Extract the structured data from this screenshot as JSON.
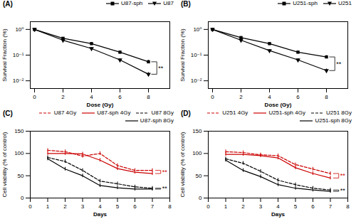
{
  "chart_data": [
    {
      "type": "line",
      "title": "(A)",
      "xlabel": "Dose (Gy)",
      "ylabel": "Survival Fraction (%)",
      "x": [
        0,
        2,
        4,
        6,
        8
      ],
      "series": [
        {
          "name": "U87-sph",
          "color": "#000000",
          "marker": "square",
          "line_style": "solid",
          "values": [
            1.0,
            0.45,
            0.28,
            0.13,
            0.055
          ],
          "errors": [
            0.0,
            0.03,
            0.02,
            0.015,
            0.008
          ]
        },
        {
          "name": "U87",
          "color": "#000000",
          "marker": "triangle_down",
          "line_style": "solid",
          "values": [
            1.0,
            0.38,
            0.18,
            0.065,
            0.018
          ],
          "errors": [
            0.0,
            0.025,
            0.015,
            0.008,
            0.003
          ]
        }
      ],
      "log": "y",
      "xlim": [
        -0.3,
        9.5
      ],
      "xticks": [
        0,
        2,
        4,
        6,
        8
      ],
      "ylim": [
        0.005,
        2
      ],
      "yticks": [
        {
          "value": 0.01,
          "label": "10⁻²"
        },
        {
          "value": 0.1,
          "label": "10⁻¹"
        },
        {
          "value": 1,
          "label": "10⁰"
        }
      ],
      "grid": false,
      "legend": "upper right",
      "annotations": [
        {
          "text": "**",
          "color": "#000000",
          "series": [
            "U87-sph",
            "U87"
          ]
        }
      ]
    },
    {
      "type": "line",
      "title": "(B)",
      "xlabel": "Dose (Gy)",
      "ylabel": "Survival Fraction (%)",
      "x": [
        0,
        2,
        4,
        6,
        8
      ],
      "series": [
        {
          "name": "U251-sph",
          "color": "#000000",
          "marker": "square",
          "line_style": "solid",
          "values": [
            1.0,
            0.48,
            0.28,
            0.13,
            0.085
          ],
          "errors": [
            0.0,
            0.03,
            0.025,
            0.015,
            0.01
          ]
        },
        {
          "name": "U251",
          "color": "#000000",
          "marker": "triangle_down",
          "line_style": "solid",
          "values": [
            1.0,
            0.38,
            0.15,
            0.065,
            0.025
          ],
          "errors": [
            0.0,
            0.025,
            0.015,
            0.008,
            0.004
          ]
        }
      ],
      "log": "y",
      "xlim": [
        -0.3,
        9.5
      ],
      "xticks": [
        0,
        2,
        4,
        6,
        8
      ],
      "ylim": [
        0.005,
        2
      ],
      "yticks": [
        {
          "value": 0.01,
          "label": "10⁻²"
        },
        {
          "value": 0.1,
          "label": "10⁻¹"
        },
        {
          "value": 1,
          "label": "10⁰"
        }
      ],
      "grid": false,
      "legend": "upper right",
      "annotations": [
        {
          "text": "**",
          "color": "#000000",
          "series": [
            "U251-sph",
            "U251"
          ]
        }
      ]
    },
    {
      "type": "line",
      "title": "(C)",
      "xlabel": "Days",
      "ylabel": "Cell viability (% of control)",
      "x": [
        1,
        2,
        3,
        4,
        5,
        6,
        7
      ],
      "series": [
        {
          "name": "U87 4Gy",
          "color": "#cc0000",
          "line_style": "dashed",
          "values": [
            107,
            104,
            94,
            100,
            73,
            62,
            62
          ],
          "errors": [
            4,
            4,
            4,
            4,
            4,
            4,
            4
          ]
        },
        {
          "name": "U87-sph 4Gy",
          "color": "#cc0000",
          "line_style": "solid",
          "values": [
            100,
            100,
            99,
            85,
            66,
            58,
            55
          ],
          "errors": [
            4,
            4,
            4,
            4,
            4,
            4,
            4
          ]
        },
        {
          "name": "U87 8Gy",
          "color": "#000000",
          "line_style": "dashed",
          "values": [
            91,
            82,
            62,
            38,
            32,
            25,
            22
          ],
          "errors": [
            4,
            4,
            4,
            4,
            4,
            4,
            4
          ]
        },
        {
          "name": "U87-sph 8Gy",
          "color": "#000000",
          "line_style": "solid",
          "values": [
            88,
            65,
            50,
            28,
            23,
            20,
            20
          ],
          "errors": [
            4,
            4,
            4,
            4,
            4,
            4,
            4
          ]
        }
      ],
      "xlim": [
        0,
        8
      ],
      "xticks": [
        0,
        1,
        2,
        3,
        4,
        5,
        6,
        7,
        8
      ],
      "ylim": [
        0,
        150
      ],
      "yticks": [
        0,
        50,
        100,
        150
      ],
      "grid": false,
      "legend": "upper right",
      "annotations": [
        {
          "text": "**",
          "color": "#cc0000",
          "series": [
            "U87 4Gy",
            "U87-sph 4Gy"
          ]
        },
        {
          "text": "**",
          "color": "#000000",
          "series": [
            "U87 8Gy",
            "U87-sph 8Gy"
          ]
        }
      ]
    },
    {
      "type": "line",
      "title": "(D)",
      "xlabel": "Days",
      "ylabel": "Cell viability (% of control)",
      "x": [
        1,
        2,
        3,
        4,
        5,
        6,
        7
      ],
      "series": [
        {
          "name": "U251 4Gy",
          "color": "#cc0000",
          "line_style": "dashed",
          "values": [
            104,
            102,
            97,
            95,
            75,
            65,
            55
          ],
          "errors": [
            4,
            4,
            4,
            4,
            4,
            4,
            4
          ]
        },
        {
          "name": "U251-sph 4Gy",
          "color": "#cc0000",
          "line_style": "solid",
          "values": [
            98,
            98,
            95,
            90,
            68,
            55,
            45
          ],
          "errors": [
            4,
            4,
            4,
            4,
            4,
            4,
            4
          ]
        },
        {
          "name": "U251 8Gy",
          "color": "#000000",
          "line_style": "dashed",
          "values": [
            88,
            78,
            60,
            40,
            30,
            22,
            18
          ],
          "errors": [
            4,
            4,
            4,
            4,
            4,
            4,
            4
          ]
        },
        {
          "name": "U251-sph 8Gy",
          "color": "#000000",
          "line_style": "solid",
          "values": [
            85,
            62,
            48,
            30,
            22,
            18,
            15
          ],
          "errors": [
            4,
            4,
            4,
            4,
            4,
            4,
            4
          ]
        }
      ],
      "xlim": [
        0,
        8
      ],
      "xticks": [
        0,
        1,
        2,
        3,
        4,
        5,
        6,
        7,
        8
      ],
      "ylim": [
        0,
        150
      ],
      "yticks": [
        0,
        50,
        100,
        150
      ],
      "grid": false,
      "legend": "upper right",
      "annotations": [
        {
          "text": "**",
          "color": "#cc0000",
          "series": [
            "U251 4Gy",
            "U251-sph 4Gy"
          ]
        },
        {
          "text": "**",
          "color": "#000000",
          "series": [
            "U251 8Gy",
            "U251-sph 8Gy"
          ]
        }
      ]
    }
  ]
}
